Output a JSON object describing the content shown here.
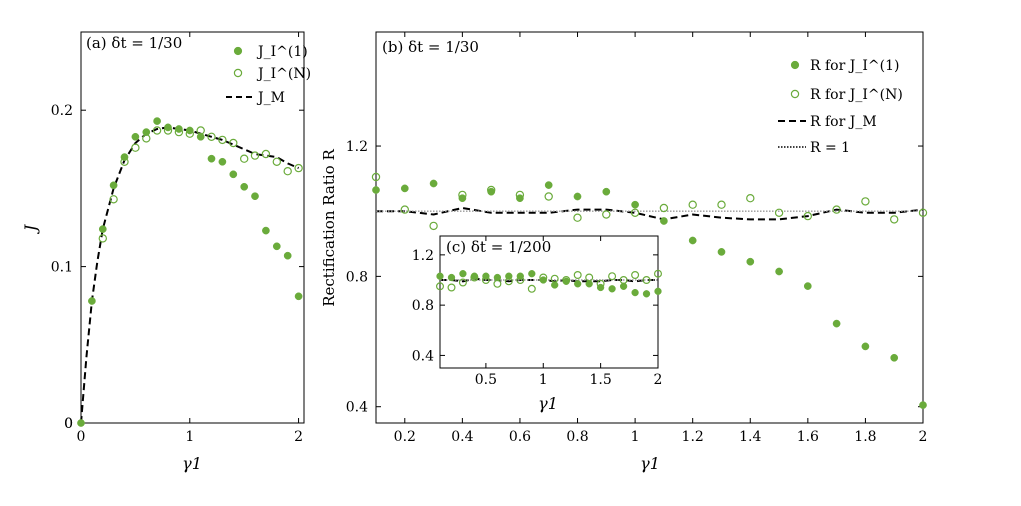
{
  "colors": {
    "marker": "#6aab3b",
    "line": "#000000",
    "refline": "#999999",
    "frame": "#000000"
  },
  "chart_data": [
    {
      "id": "a",
      "type": "scatter",
      "title": "(a) δt = 1/30",
      "xlabel": "γ1",
      "ylabel": "J",
      "xlim": [
        0,
        2.05
      ],
      "ylim": [
        0,
        0.25
      ],
      "xticks": [
        0,
        1,
        2
      ],
      "yticks": [
        0,
        0.1,
        0.2
      ],
      "legend_position": "top-right",
      "series": [
        {
          "name": "J_I^(1)",
          "marker": "filled-circle",
          "x": [
            0,
            0.1,
            0.2,
            0.3,
            0.4,
            0.5,
            0.6,
            0.7,
            0.8,
            0.9,
            1.0,
            1.1,
            1.2,
            1.3,
            1.4,
            1.5,
            1.6,
            1.7,
            1.8,
            1.9,
            2.0
          ],
          "y": [
            0,
            0.078,
            0.124,
            0.152,
            0.17,
            0.183,
            0.186,
            0.193,
            0.189,
            0.188,
            0.187,
            0.183,
            0.169,
            0.167,
            0.159,
            0.151,
            0.145,
            0.123,
            0.113,
            0.107,
            0.081
          ]
        },
        {
          "name": "J_I^(N)",
          "marker": "open-circle",
          "x": [
            0.2,
            0.3,
            0.4,
            0.5,
            0.6,
            0.7,
            0.8,
            0.9,
            1.0,
            1.1,
            1.2,
            1.3,
            1.4,
            1.5,
            1.6,
            1.7,
            1.8,
            1.9,
            2.0
          ],
          "y": [
            0.118,
            0.143,
            0.167,
            0.176,
            0.182,
            0.187,
            0.187,
            0.186,
            0.185,
            0.187,
            0.183,
            0.181,
            0.179,
            0.169,
            0.171,
            0.172,
            0.167,
            0.161,
            0.163
          ]
        },
        {
          "name": "J_M",
          "marker": "dashed-line",
          "x": [
            0,
            0.05,
            0.1,
            0.15,
            0.2,
            0.3,
            0.4,
            0.5,
            0.6,
            0.7,
            0.8,
            0.9,
            1.0,
            1.1,
            1.2,
            1.3,
            1.4,
            1.5,
            1.6,
            1.7,
            1.8,
            1.9,
            2.0
          ],
          "y": [
            0,
            0.042,
            0.078,
            0.103,
            0.124,
            0.15,
            0.168,
            0.179,
            0.185,
            0.188,
            0.189,
            0.188,
            0.187,
            0.185,
            0.183,
            0.181,
            0.178,
            0.175,
            0.172,
            0.171,
            0.17,
            0.166,
            0.163
          ]
        }
      ]
    },
    {
      "id": "b",
      "type": "scatter",
      "title": "(b) δt = 1/30",
      "xlabel": "γ1",
      "ylabel": "Rectification Ratio R",
      "xlim": [
        0.1,
        2.0
      ],
      "ylim": [
        0.35,
        1.55
      ],
      "xticks": [
        0.2,
        0.4,
        0.6,
        0.8,
        1,
        1.2,
        1.4,
        1.6,
        1.8,
        2
      ],
      "yticks": [
        0.4,
        0.8,
        1.2
      ],
      "legend_position": "top-right",
      "series": [
        {
          "name": "R for J_I^(1)",
          "marker": "filled-circle",
          "x": [
            0.1,
            0.2,
            0.3,
            0.4,
            0.5,
            0.6,
            0.7,
            0.8,
            0.9,
            1.0,
            1.1,
            1.2,
            1.3,
            1.4,
            1.5,
            1.6,
            1.7,
            1.8,
            1.9,
            2.0
          ],
          "y": [
            1.065,
            1.07,
            1.085,
            1.04,
            1.06,
            1.04,
            1.08,
            1.045,
            1.06,
            1.02,
            0.97,
            0.91,
            0.875,
            0.845,
            0.815,
            0.77,
            0.655,
            0.585,
            0.55,
            0.405
          ]
        },
        {
          "name": "R for J_I^(N)",
          "marker": "open-circle",
          "x": [
            0.1,
            0.2,
            0.3,
            0.4,
            0.5,
            0.6,
            0.7,
            0.8,
            0.9,
            1.0,
            1.1,
            1.2,
            1.3,
            1.4,
            1.5,
            1.6,
            1.7,
            1.8,
            1.9,
            2.0
          ],
          "y": [
            1.105,
            1.005,
            0.955,
            1.05,
            1.065,
            1.05,
            1.045,
            0.98,
            0.99,
            0.995,
            1.01,
            1.02,
            1.02,
            1.04,
            0.995,
            0.985,
            1.005,
            1.03,
            0.975,
            0.995
          ]
        },
        {
          "name": "R for J_M",
          "marker": "dashed-line",
          "x": [
            0.1,
            0.2,
            0.3,
            0.4,
            0.5,
            0.6,
            0.7,
            0.8,
            0.9,
            1.0,
            1.1,
            1.2,
            1.3,
            1.4,
            1.5,
            1.6,
            1.7,
            1.8,
            1.9,
            2.0
          ],
          "y": [
            1.0,
            1.0,
            0.99,
            1.01,
            0.995,
            0.995,
            0.995,
            1.005,
            1.005,
            0.995,
            0.975,
            0.99,
            0.98,
            0.975,
            0.975,
            0.985,
            1.005,
            0.995,
            0.995,
            1.005
          ]
        },
        {
          "name": "R = 1",
          "marker": "dotted-line",
          "x": [
            0.1,
            2.0
          ],
          "y": [
            1,
            1
          ]
        }
      ]
    },
    {
      "id": "c",
      "type": "scatter",
      "title": "(c) δt = 1/200",
      "xlabel": "γ1",
      "ylabel": "",
      "xlim": [
        0.1,
        2.0
      ],
      "ylim": [
        0.3,
        1.35
      ],
      "xticks": [
        0.5,
        1,
        1.5,
        2
      ],
      "yticks": [
        0.4,
        0.8,
        1.2
      ],
      "series": [
        {
          "name": "R for J_I^(1)",
          "marker": "filled-circle",
          "x": [
            0.1,
            0.2,
            0.3,
            0.4,
            0.5,
            0.6,
            0.7,
            0.8,
            0.9,
            1.0,
            1.1,
            1.2,
            1.3,
            1.4,
            1.5,
            1.6,
            1.7,
            1.8,
            1.9,
            2.0
          ],
          "y": [
            1.03,
            1.02,
            1.05,
            1.03,
            1.03,
            1.02,
            1.03,
            1.03,
            1.05,
            1.0,
            0.96,
            0.99,
            0.97,
            0.97,
            0.94,
            0.93,
            0.95,
            0.9,
            0.89,
            0.91
          ]
        },
        {
          "name": "R for J_I^(N)",
          "marker": "open-circle",
          "x": [
            0.1,
            0.2,
            0.3,
            0.4,
            0.5,
            0.6,
            0.7,
            0.8,
            0.9,
            1.0,
            1.1,
            1.2,
            1.3,
            1.4,
            1.5,
            1.6,
            1.7,
            1.8,
            1.9,
            2.0
          ],
          "y": [
            0.95,
            0.94,
            0.98,
            1.02,
            1.0,
            0.97,
            0.99,
            1.0,
            0.93,
            1.02,
            1.01,
            1.0,
            1.04,
            1.02,
            0.97,
            1.03,
            1.0,
            1.04,
            1.0,
            1.05
          ]
        },
        {
          "name": "R for J_M",
          "marker": "dashed-line",
          "x": [
            0.1,
            0.2,
            0.3,
            0.4,
            0.5,
            0.6,
            0.7,
            0.8,
            0.9,
            1.0,
            1.1,
            1.2,
            1.3,
            1.4,
            1.5,
            1.6,
            1.7,
            1.8,
            1.9,
            2.0
          ],
          "y": [
            1.0,
            1.0,
            0.99,
            1.01,
            1.0,
            1.0,
            0.99,
            1.0,
            1.0,
            1.0,
            0.99,
            1.0,
            0.99,
            0.99,
            0.99,
            1.0,
            1.0,
            0.99,
            1.0,
            1.0
          ]
        },
        {
          "name": "R = 1",
          "marker": "dotted-line",
          "x": [
            0.1,
            2.0
          ],
          "y": [
            1,
            1
          ]
        }
      ]
    }
  ]
}
